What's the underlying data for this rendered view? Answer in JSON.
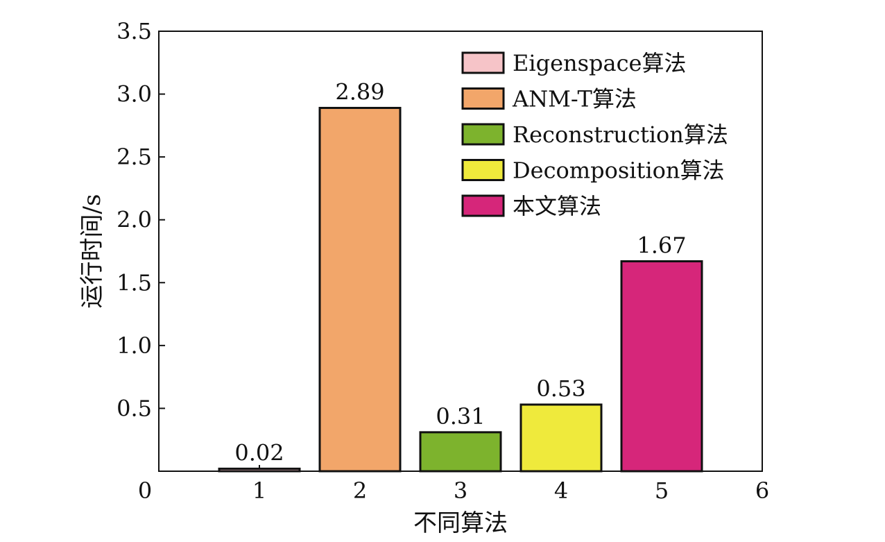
{
  "chart_data": {
    "type": "bar",
    "title": "",
    "xlabel": "不同算法",
    "ylabel": "运行时间/s",
    "xlim": [
      0,
      6
    ],
    "ylim": [
      0,
      3.5
    ],
    "x_ticks": [
      "0",
      "1",
      "2",
      "3",
      "4",
      "5",
      "6"
    ],
    "y_ticks": [
      "0.5",
      "1.0",
      "1.5",
      "2.0",
      "2.5",
      "3.0",
      "3.5"
    ],
    "categories": [
      1,
      2,
      3,
      4,
      5
    ],
    "series": [
      {
        "name": "Eigenspace算法",
        "x": 1,
        "value": 0.02,
        "label": "0.02",
        "color": "#f6c4c8"
      },
      {
        "name": "ANM-T算法",
        "x": 2,
        "value": 2.89,
        "label": "2.89",
        "color": "#f2a66a"
      },
      {
        "name": "Reconstruction算法",
        "x": 3,
        "value": 0.31,
        "label": "0.31",
        "color": "#7db32d"
      },
      {
        "name": "Decomposition算法",
        "x": 4,
        "value": 0.53,
        "label": "0.53",
        "color": "#efea3c"
      },
      {
        "name": "本文算法",
        "x": 5,
        "value": 1.67,
        "label": "1.67",
        "color": "#d6267a"
      }
    ],
    "grid": false,
    "legend_position": "top-right"
  }
}
